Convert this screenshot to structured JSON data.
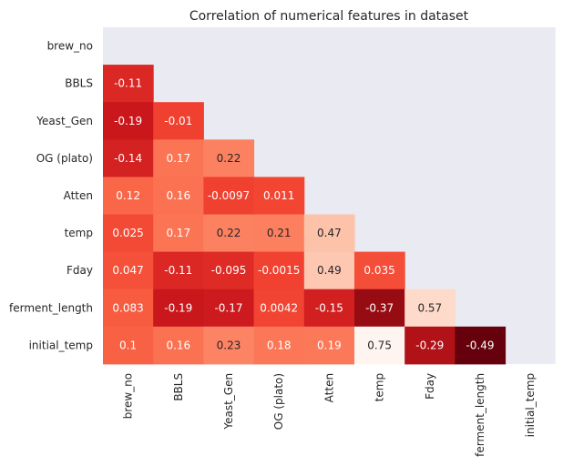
{
  "chart_data": {
    "type": "heatmap",
    "title": "Correlation of numerical features in dataset",
    "colormap": "Reds",
    "background_color": "#eaeaf2",
    "mask": "upper triangle including diagonal",
    "value_range": [
      -0.49,
      0.75
    ],
    "labels": [
      "brew_no",
      "BBLS",
      "Yeast_Gen",
      "OG (plato)",
      "Atten",
      "temp",
      "Fday",
      "ferment_length",
      "initial_temp"
    ],
    "cells": [
      {
        "row": "BBLS",
        "col": "brew_no",
        "value": -0.11,
        "text": "-0.11"
      },
      {
        "row": "Yeast_Gen",
        "col": "brew_no",
        "value": -0.19,
        "text": "-0.19"
      },
      {
        "row": "Yeast_Gen",
        "col": "BBLS",
        "value": -0.01,
        "text": "-0.01"
      },
      {
        "row": "OG (plato)",
        "col": "brew_no",
        "value": -0.14,
        "text": "-0.14"
      },
      {
        "row": "OG (plato)",
        "col": "BBLS",
        "value": 0.17,
        "text": "0.17"
      },
      {
        "row": "OG (plato)",
        "col": "Yeast_Gen",
        "value": 0.22,
        "text": "0.22"
      },
      {
        "row": "Atten",
        "col": "brew_no",
        "value": 0.12,
        "text": "0.12"
      },
      {
        "row": "Atten",
        "col": "BBLS",
        "value": 0.16,
        "text": "0.16"
      },
      {
        "row": "Atten",
        "col": "Yeast_Gen",
        "value": -0.0097,
        "text": "-0.0097"
      },
      {
        "row": "Atten",
        "col": "OG (plato)",
        "value": 0.011,
        "text": "0.011"
      },
      {
        "row": "temp",
        "col": "brew_no",
        "value": 0.025,
        "text": "0.025"
      },
      {
        "row": "temp",
        "col": "BBLS",
        "value": 0.17,
        "text": "0.17"
      },
      {
        "row": "temp",
        "col": "Yeast_Gen",
        "value": 0.22,
        "text": "0.22"
      },
      {
        "row": "temp",
        "col": "OG (plato)",
        "value": 0.21,
        "text": "0.21"
      },
      {
        "row": "temp",
        "col": "Atten",
        "value": 0.47,
        "text": "0.47"
      },
      {
        "row": "Fday",
        "col": "brew_no",
        "value": 0.047,
        "text": "0.047"
      },
      {
        "row": "Fday",
        "col": "BBLS",
        "value": -0.11,
        "text": "-0.11"
      },
      {
        "row": "Fday",
        "col": "Yeast_Gen",
        "value": -0.095,
        "text": "-0.095"
      },
      {
        "row": "Fday",
        "col": "OG (plato)",
        "value": -0.0015,
        "text": "-0.0015"
      },
      {
        "row": "Fday",
        "col": "Atten",
        "value": 0.49,
        "text": "0.49"
      },
      {
        "row": "Fday",
        "col": "temp",
        "value": 0.035,
        "text": "0.035"
      },
      {
        "row": "ferment_length",
        "col": "brew_no",
        "value": 0.083,
        "text": "0.083"
      },
      {
        "row": "ferment_length",
        "col": "BBLS",
        "value": -0.19,
        "text": "-0.19"
      },
      {
        "row": "ferment_length",
        "col": "Yeast_Gen",
        "value": -0.17,
        "text": "-0.17"
      },
      {
        "row": "ferment_length",
        "col": "OG (plato)",
        "value": 0.0042,
        "text": "0.0042"
      },
      {
        "row": "ferment_length",
        "col": "Atten",
        "value": -0.15,
        "text": "-0.15"
      },
      {
        "row": "ferment_length",
        "col": "temp",
        "value": -0.37,
        "text": "-0.37"
      },
      {
        "row": "ferment_length",
        "col": "Fday",
        "value": 0.57,
        "text": "0.57"
      },
      {
        "row": "initial_temp",
        "col": "brew_no",
        "value": 0.1,
        "text": "0.1"
      },
      {
        "row": "initial_temp",
        "col": "BBLS",
        "value": 0.16,
        "text": "0.16"
      },
      {
        "row": "initial_temp",
        "col": "Yeast_Gen",
        "value": 0.23,
        "text": "0.23"
      },
      {
        "row": "initial_temp",
        "col": "OG (plato)",
        "value": 0.18,
        "text": "0.18"
      },
      {
        "row": "initial_temp",
        "col": "Atten",
        "value": 0.19,
        "text": "0.19"
      },
      {
        "row": "initial_temp",
        "col": "temp",
        "value": 0.75,
        "text": "0.75"
      },
      {
        "row": "initial_temp",
        "col": "Fday",
        "value": -0.29,
        "text": "-0.29"
      },
      {
        "row": "initial_temp",
        "col": "ferment_length",
        "value": -0.49,
        "text": "-0.49"
      }
    ]
  }
}
